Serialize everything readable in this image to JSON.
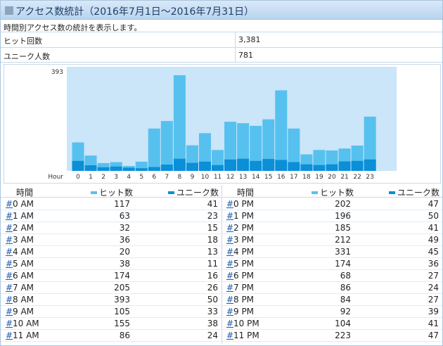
{
  "title": "アクセス数統計（2016年7月1日～2016年7月31日）",
  "description": "時間別アクセス数の統計を表示します。",
  "stats": [
    {
      "label": "ヒット回数",
      "value": "3,381"
    },
    {
      "label": "ユニーク人数",
      "value": "781"
    }
  ],
  "colors": {
    "hits": "#56c1ee",
    "uniques": "#0a8fd8",
    "plot_bg": "#cbe5f9",
    "link": "#1d5aa8"
  },
  "table": {
    "col_time": "時間",
    "col_hits": "ヒット数",
    "col_uniques": "ユニーク数",
    "hash": "#",
    "am_rows": [
      {
        "time": "0 AM",
        "hits": "117",
        "uniques": "41"
      },
      {
        "time": "1 AM",
        "hits": "63",
        "uniques": "23"
      },
      {
        "time": "2 AM",
        "hits": "32",
        "uniques": "15"
      },
      {
        "time": "3 AM",
        "hits": "36",
        "uniques": "18"
      },
      {
        "time": "4 AM",
        "hits": "20",
        "uniques": "13"
      },
      {
        "time": "5 AM",
        "hits": "38",
        "uniques": "11"
      },
      {
        "time": "6 AM",
        "hits": "174",
        "uniques": "16"
      },
      {
        "time": "7 AM",
        "hits": "205",
        "uniques": "26"
      },
      {
        "time": "8 AM",
        "hits": "393",
        "uniques": "50"
      },
      {
        "time": "9 AM",
        "hits": "105",
        "uniques": "33"
      },
      {
        "time": "10 AM",
        "hits": "155",
        "uniques": "38"
      },
      {
        "time": "11 AM",
        "hits": "86",
        "uniques": "24"
      }
    ],
    "pm_rows": [
      {
        "time": "0 PM",
        "hits": "202",
        "uniques": "47"
      },
      {
        "time": "1 PM",
        "hits": "196",
        "uniques": "50"
      },
      {
        "time": "2 PM",
        "hits": "185",
        "uniques": "41"
      },
      {
        "time": "3 PM",
        "hits": "212",
        "uniques": "49"
      },
      {
        "time": "4 PM",
        "hits": "331",
        "uniques": "45"
      },
      {
        "time": "5 PM",
        "hits": "174",
        "uniques": "36"
      },
      {
        "time": "6 PM",
        "hits": "68",
        "uniques": "27"
      },
      {
        "time": "7 PM",
        "hits": "86",
        "uniques": "24"
      },
      {
        "time": "8 PM",
        "hits": "84",
        "uniques": "27"
      },
      {
        "time": "9 PM",
        "hits": "92",
        "uniques": "39"
      },
      {
        "time": "10 PM",
        "hits": "104",
        "uniques": "41"
      },
      {
        "time": "11 PM",
        "hits": "223",
        "uniques": "47"
      }
    ]
  },
  "chart_data": {
    "type": "bar",
    "title": "",
    "xlabel": "Hour",
    "ylabel": "",
    "ymax_label": "393",
    "ylim": [
      0,
      393
    ],
    "categories": [
      "0",
      "1",
      "2",
      "3",
      "4",
      "5",
      "6",
      "7",
      "8",
      "9",
      "10",
      "11",
      "12",
      "13",
      "14",
      "15",
      "16",
      "17",
      "18",
      "19",
      "20",
      "21",
      "22",
      "23"
    ],
    "series": [
      {
        "name": "ヒット数",
        "values": [
          117,
          63,
          32,
          36,
          20,
          38,
          174,
          205,
          393,
          105,
          155,
          86,
          202,
          196,
          185,
          212,
          331,
          174,
          68,
          86,
          84,
          92,
          104,
          223
        ]
      },
      {
        "name": "ユニーク数",
        "values": [
          41,
          23,
          15,
          18,
          13,
          11,
          16,
          26,
          50,
          33,
          38,
          24,
          47,
          50,
          41,
          49,
          45,
          36,
          27,
          24,
          27,
          39,
          41,
          47
        ]
      }
    ],
    "grid": false,
    "legend": "table-header"
  }
}
